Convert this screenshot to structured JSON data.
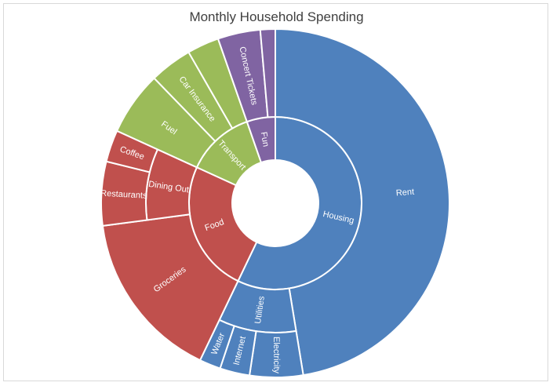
{
  "chart_data": {
    "type": "sunburst",
    "title": "Monthly Household Spending",
    "colors": {
      "Housing": "#4f81bd",
      "Food": "#c0504d",
      "Transport": "#9bbb59",
      "Fun": "#8064a2"
    },
    "hierarchy": [
      {
        "name": "Housing",
        "children": [
          {
            "name": "Rent",
            "value": 1200
          },
          {
            "name": "Utilities",
            "children": [
              {
                "name": "Electricity",
                "value": 125
              },
              {
                "name": "Internet",
                "value": 70
              },
              {
                "name": "Water",
                "value": 50
              }
            ]
          }
        ]
      },
      {
        "name": "Food",
        "children": [
          {
            "name": "Groceries",
            "value": 400
          },
          {
            "name": "Dining Out",
            "children": [
              {
                "name": "Restaurants",
                "value": 150
              },
              {
                "name": "Coffee",
                "value": 75
              }
            ]
          }
        ]
      },
      {
        "name": "Transport",
        "children": [
          {
            "name": "Fuel",
            "value": 150
          },
          {
            "name": "Car Insurance",
            "value": 100
          },
          {
            "name": "",
            "value": 75
          }
        ]
      },
      {
        "name": "Fun",
        "children": [
          {
            "name": "Concert Tickets",
            "value": 100
          },
          {
            "name": "",
            "value": 35
          }
        ]
      }
    ]
  }
}
